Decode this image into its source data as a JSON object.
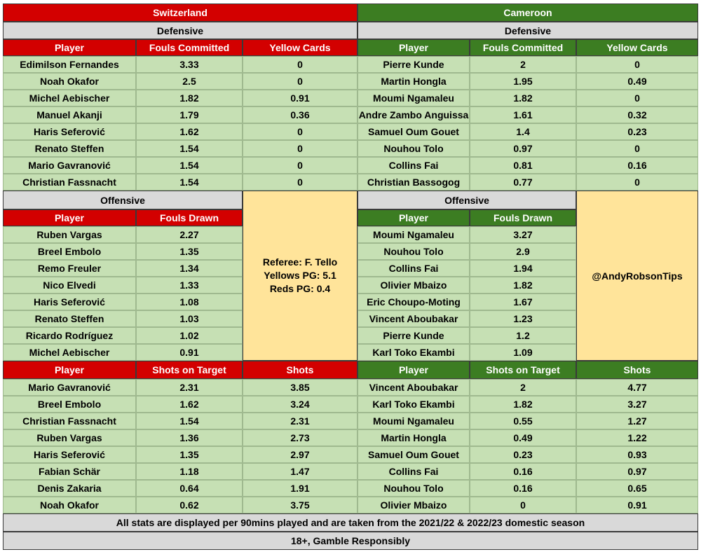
{
  "switzerland": {
    "team": "Switzerland",
    "defensive": {
      "section_label": "Defensive",
      "headers": [
        "Player",
        "Fouls Committed",
        "Yellow Cards"
      ],
      "rows": [
        [
          "Edimilson Fernandes",
          "3.33",
          "0"
        ],
        [
          "Noah Okafor",
          "2.5",
          "0"
        ],
        [
          "Michel Aebischer",
          "1.82",
          "0.91"
        ],
        [
          "Manuel Akanji",
          "1.79",
          "0.36"
        ],
        [
          "Haris Seferović",
          "1.62",
          "0"
        ],
        [
          "Renato Steffen",
          "1.54",
          "0"
        ],
        [
          "Mario Gavranović",
          "1.54",
          "0"
        ],
        [
          "Christian Fassnacht",
          "1.54",
          "0"
        ]
      ]
    },
    "offensive": {
      "section_label": "Offensive",
      "headers": [
        "Player",
        "Fouls Drawn"
      ],
      "rows": [
        [
          "Ruben Vargas",
          "2.27"
        ],
        [
          "Breel Embolo",
          "1.35"
        ],
        [
          "Remo Freuler",
          "1.34"
        ],
        [
          "Nico Elvedi",
          "1.33"
        ],
        [
          "Haris Seferović",
          "1.08"
        ],
        [
          "Renato Steffen",
          "1.03"
        ],
        [
          "Ricardo Rodríguez",
          "1.02"
        ],
        [
          "Michel Aebischer",
          "0.91"
        ]
      ]
    },
    "shooting": {
      "headers": [
        "Player",
        "Shots on Target",
        "Shots"
      ],
      "rows": [
        [
          "Mario Gavranović",
          "2.31",
          "3.85"
        ],
        [
          "Breel Embolo",
          "1.62",
          "3.24"
        ],
        [
          "Christian Fassnacht",
          "1.54",
          "2.31"
        ],
        [
          "Ruben Vargas",
          "1.36",
          "2.73"
        ],
        [
          "Haris Seferović",
          "1.35",
          "2.97"
        ],
        [
          "Fabian Schär",
          "1.18",
          "1.47"
        ],
        [
          "Denis Zakaria",
          "0.64",
          "1.91"
        ],
        [
          "Noah Okafor",
          "0.62",
          "3.75"
        ]
      ]
    }
  },
  "cameroon": {
    "team": "Cameroon",
    "defensive": {
      "section_label": "Defensive",
      "headers": [
        "Player",
        "Fouls Committed",
        "Yellow Cards"
      ],
      "rows": [
        [
          "Pierre Kunde",
          "2",
          "0"
        ],
        [
          "Martin Hongla",
          "1.95",
          "0.49"
        ],
        [
          "Moumi Ngamaleu",
          "1.82",
          "0"
        ],
        [
          "Andre Zambo Anguissa",
          "1.61",
          "0.32"
        ],
        [
          "Samuel Oum Gouet",
          "1.4",
          "0.23"
        ],
        [
          "Nouhou Tolo",
          "0.97",
          "0"
        ],
        [
          "Collins Fai",
          "0.81",
          "0.16"
        ],
        [
          "Christian Bassogog",
          "0.77",
          "0"
        ]
      ]
    },
    "offensive": {
      "section_label": "Offensive",
      "headers": [
        "Player",
        "Fouls Drawn"
      ],
      "rows": [
        [
          "Moumi Ngamaleu",
          "3.27"
        ],
        [
          "Nouhou Tolo",
          "2.9"
        ],
        [
          "Collins Fai",
          "1.94"
        ],
        [
          "Olivier Mbaizo",
          "1.82"
        ],
        [
          "Eric Choupo-Moting",
          "1.67"
        ],
        [
          "Vincent Aboubakar",
          "1.23"
        ],
        [
          "Pierre Kunde",
          "1.2"
        ],
        [
          "Karl Toko Ekambi",
          "1.09"
        ]
      ]
    },
    "shooting": {
      "headers": [
        "Player",
        "Shots on Target",
        "Shots"
      ],
      "rows": [
        [
          "Vincent Aboubakar",
          "2",
          "4.77"
        ],
        [
          "Karl Toko Ekambi",
          "1.82",
          "3.27"
        ],
        [
          "Moumi Ngamaleu",
          "0.55",
          "1.27"
        ],
        [
          "Martin Hongla",
          "0.49",
          "1.22"
        ],
        [
          "Samuel Oum Gouet",
          "0.23",
          "0.93"
        ],
        [
          "Collins Fai",
          "0.16",
          "0.97"
        ],
        [
          "Nouhou Tolo",
          "0.16",
          "0.65"
        ],
        [
          "Olivier Mbaizo",
          "0",
          "0.91"
        ]
      ]
    }
  },
  "referee": {
    "name_line": "Referee: F. Tello",
    "yellows_line": "Yellows PG: 5.1",
    "reds_line": "Reds PG: 0.4"
  },
  "handle": "@AndyRobsonTips",
  "footer": {
    "note": "All stats are displayed per 90mins played and are taken from the 2021/22 & 2022/23 domestic season",
    "disclaimer": "18+, Gamble Responsibly"
  },
  "colors": {
    "switzerland_header": "#d30000",
    "cameroon_header": "#3c7d22",
    "section_bar": "#d9d9d9",
    "data_cell": "#c6e0b4",
    "info_box": "#ffe49a"
  }
}
